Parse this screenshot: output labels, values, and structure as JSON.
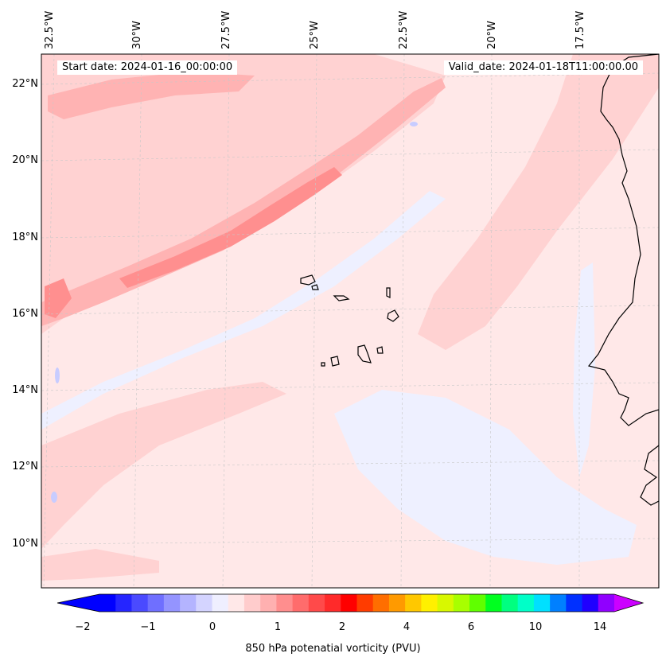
{
  "map": {
    "start_date_label": "Start date: 2024-01-16_00:00:00",
    "valid_date_label": "Valid_date: 2024-01-18T11:00:00.00",
    "longitude_labels": [
      "32.5°W",
      "30°W",
      "27.5°W",
      "25°W",
      "22.5°W",
      "20°W",
      "17.5°W"
    ],
    "latitude_labels": [
      "22°N",
      "20°N",
      "18°N",
      "16°N",
      "14°N",
      "12°N",
      "10°N"
    ],
    "colors": {
      "background_field": "#ffe8e8",
      "light_pink": "#ffd2d2",
      "mid_pink": "#ffb3b3",
      "dark_pink": "#ff8f8f",
      "light_blue": "#eef0ff",
      "mid_blue": "#c8ccff",
      "coastline": "#000000",
      "gridline": "#c8c8c8"
    }
  },
  "colorbar": {
    "title": "850 hPa potenatial vorticity (PVU)",
    "tick_labels": [
      "−2",
      "−1",
      "0",
      "1",
      "2",
      "4",
      "6",
      "10",
      "14"
    ],
    "colors": [
      "#0000ff",
      "#2525ff",
      "#4a4aff",
      "#6f6fff",
      "#9494ff",
      "#b4b4ff",
      "#d4d4ff",
      "#efefff",
      "#ffe8e8",
      "#ffcccc",
      "#ffb0b0",
      "#ff8e8e",
      "#ff6c6c",
      "#ff4a4a",
      "#ff2a2a",
      "#ff0000",
      "#ff3c00",
      "#ff6e00",
      "#ff9a00",
      "#ffc800",
      "#fff000",
      "#d8f800",
      "#a8ff00",
      "#60ff00",
      "#00ff20",
      "#00ff80",
      "#00ffc8",
      "#00e0ff",
      "#0080ff",
      "#0030ff",
      "#2000ff",
      "#9000ff"
    ],
    "extend_min_color": "#0000ff",
    "extend_max_color": "#cc00ff"
  }
}
